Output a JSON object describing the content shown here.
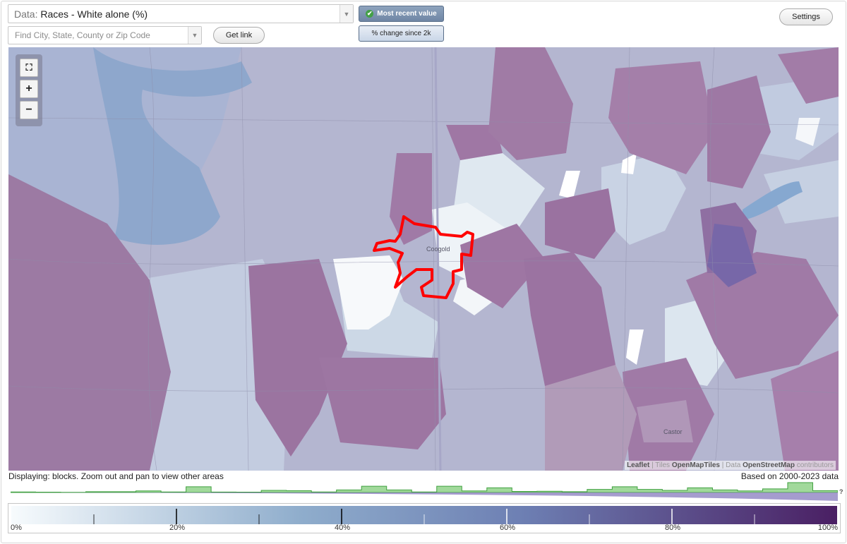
{
  "data_select": {
    "prefix": "Data:",
    "value": "Races - White alone (%)"
  },
  "search": {
    "placeholder": "Find City, State, County or Zip Code"
  },
  "buttons": {
    "get_link": "Get link",
    "settings": "Settings"
  },
  "toggles": {
    "most_recent": "Most recent value",
    "change": "% change since 2k"
  },
  "map": {
    "zoom_fit": "⛶",
    "zoom_in": "+",
    "zoom_out": "−",
    "labels": {
      "city": "Coogold",
      "town": "Castor"
    },
    "attribution": {
      "leaflet": "Leaflet",
      "tiles_pre": "Tiles",
      "tiles": "OpenMapTiles",
      "data_pre": "Data",
      "data": "OpenStreetMap",
      "contrib": "contributors"
    }
  },
  "status": {
    "displaying": "Displaying: blocks. Zoom out and pan to view other areas",
    "basis": "Based on 2000-2023 data"
  },
  "legend": {
    "ticks": [
      "0%",
      "20%",
      "40%",
      "60%",
      "80%",
      "100%"
    ],
    "colors": {
      "low": "#f7fbfd",
      "mid": "#8fadcc",
      "mid2": "#6d7fb3",
      "high": "#4a1f63"
    }
  },
  "histogram": {
    "values": [
      0.05,
      0.03,
      0.02,
      0.08,
      0.08,
      0.15,
      0.05,
      0.55,
      0.04,
      0.03,
      0.2,
      0.18,
      0.05,
      0.25,
      0.6,
      0.25,
      0.05,
      0.6,
      0.15,
      0.45,
      0.1,
      0.12,
      0.08,
      0.3,
      0.55,
      0.3,
      0.2,
      0.45,
      0.25,
      0.15,
      0.35,
      0.95,
      0.18
    ],
    "question": "?"
  },
  "colors": {
    "accent": "#8ea3bd",
    "hist_fill": "#a1d99b",
    "hist_line": "#41a141",
    "outline": "#ff0000"
  }
}
